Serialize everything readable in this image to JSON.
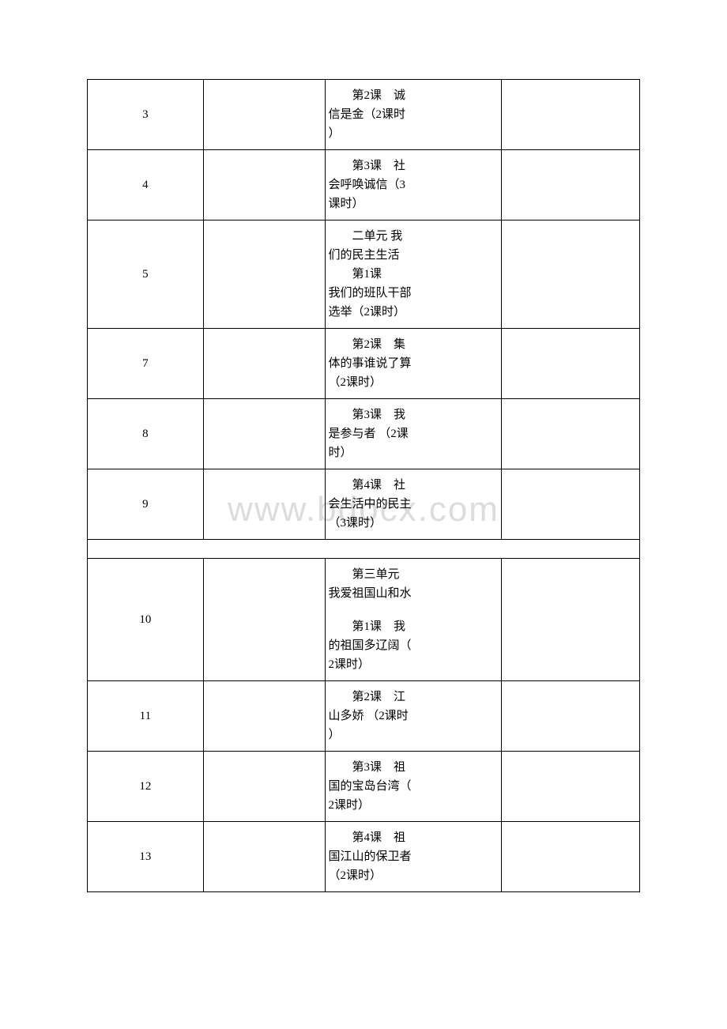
{
  "watermark": "www.bdocx.com",
  "table": {
    "border_color": "#000000",
    "background_color": "#ffffff",
    "text_color": "#000000",
    "font_size": 15,
    "columns": [
      {
        "width_pct": 21,
        "align": "center"
      },
      {
        "width_pct": 22,
        "align": "left"
      },
      {
        "width_pct": 32,
        "align": "left"
      },
      {
        "width_pct": 25,
        "align": "left"
      }
    ],
    "rows": [
      {
        "num": "3",
        "col2": "",
        "content_l1": "第2课　诚",
        "content_l2": "信是金（2课时",
        "content_l3": "）",
        "col4": ""
      },
      {
        "num": "4",
        "col2": "",
        "content_l1": "第3课　社",
        "content_l2": "会呼唤诚信（3",
        "content_l3": "课时）",
        "col4": ""
      },
      {
        "num": "5",
        "col2": "",
        "unit_l1": "二单元 我",
        "unit_l2": "们的民主生活",
        "content_l1": "第1课　",
        "content_l2": "我们的班队干部",
        "content_l3": "选举（2课时）",
        "col4": ""
      },
      {
        "num": "7",
        "col2": "",
        "content_l1": "第2课　集",
        "content_l2": "体的事谁说了算",
        "content_l3": "（2课时）",
        "col4": ""
      },
      {
        "num": "8",
        "col2": "",
        "content_l1": "第3课　我",
        "content_l2": "是参与者 （2课",
        "content_l3": "时）",
        "col4": ""
      },
      {
        "num": "9",
        "col2": "",
        "content_l1": "第4课　社",
        "content_l2": "会生活中的民主",
        "content_l3": "（3课时）",
        "col4": ""
      },
      {
        "spacer": true
      },
      {
        "num": "10",
        "col2": "",
        "unit_l1": "第三单元 ",
        "unit_l2": "我爱祖国山和水",
        "blank": true,
        "content_l1": "第1课　我",
        "content_l2": "的祖国多辽阔（",
        "content_l3": "2课时）",
        "col4": ""
      },
      {
        "num": "11",
        "col2": "",
        "content_l1": "第2课　江",
        "content_l2": "山多娇 （2课时",
        "content_l3": "）",
        "col4": ""
      },
      {
        "num": "12",
        "col2": "",
        "content_l1": "第3课　祖",
        "content_l2": "国的宝岛台湾（",
        "content_l3": "2课时）",
        "col4": ""
      },
      {
        "num": "13",
        "col2": "",
        "content_l1": "第4课　祖",
        "content_l2": "国江山的保卫者",
        "content_l3": "（2课时）",
        "col4": ""
      }
    ]
  }
}
